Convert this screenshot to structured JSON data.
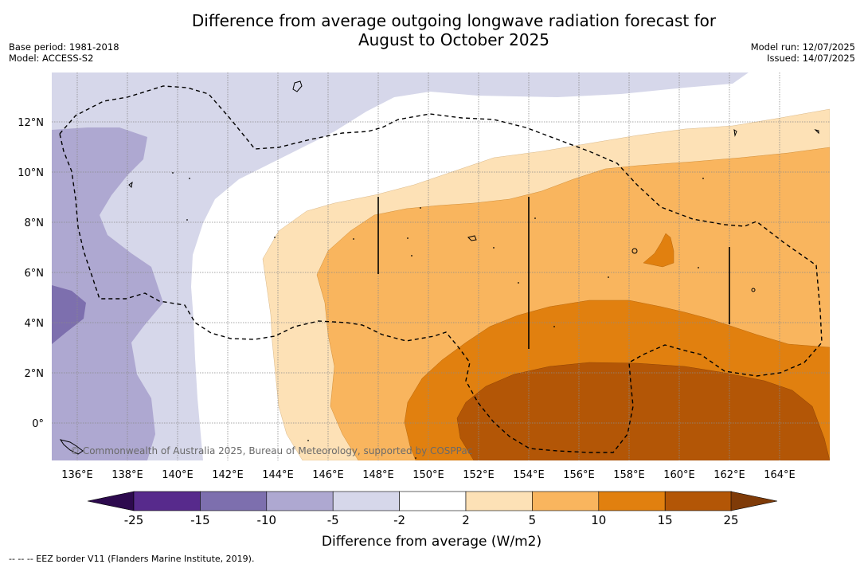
{
  "title": {
    "line1": "Difference from average outgoing longwave radiation forecast for",
    "line2": "August to October 2025"
  },
  "meta_left": {
    "base_period": "Base period: 1981-2018",
    "model": "Model: ACCESS-S2"
  },
  "meta_right": {
    "model_run": "Model run: 12/07/2025",
    "issued": "Issued: 14/07/2025"
  },
  "copyright": "© Commonwealth of Australia 2025, Bureau of Meteorology, supported by COSPPac",
  "footnote": "--  --  -- EEZ border V11 (Flanders Marine Institute, 2019).",
  "map": {
    "lon_range": [
      135,
      166
    ],
    "lat_range": [
      -1.5,
      14
    ],
    "lon_ticks": [
      "136°E",
      "138°E",
      "140°E",
      "142°E",
      "144°E",
      "146°E",
      "148°E",
      "150°E",
      "152°E",
      "154°E",
      "156°E",
      "158°E",
      "160°E",
      "162°E",
      "164°E"
    ],
    "lat_ticks": [
      "12°N",
      "10°N",
      "8°N",
      "6°N",
      "4°N",
      "2°N",
      "0°"
    ],
    "gridlines": true
  },
  "colorbar": {
    "title": "Difference from average (W/m2)",
    "boundaries": [
      "-25",
      "-15",
      "-10",
      "-5",
      "-2",
      "2",
      "5",
      "10",
      "15",
      "25"
    ],
    "colors": [
      "#572a8c",
      "#7d6fae",
      "#aea8d1",
      "#d6d7ea",
      "#ffffff",
      "#fde1b6",
      "#f9b55e",
      "#e1800f",
      "#b35606"
    ],
    "extend_low_color": "#2d0a4e",
    "extend_high_color": "#7f3b08"
  }
}
